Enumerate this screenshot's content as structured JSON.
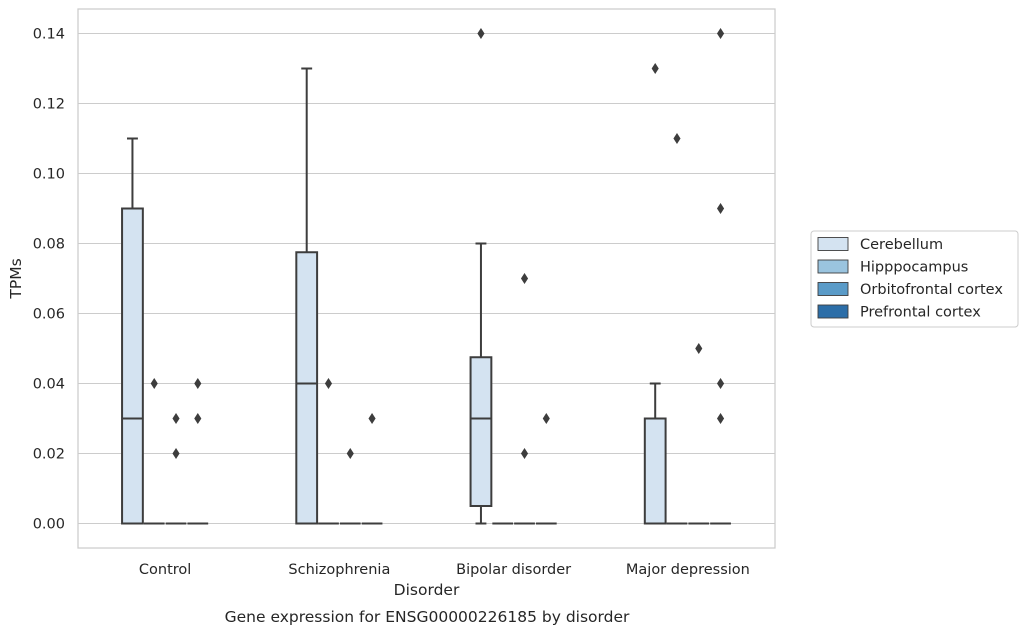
{
  "chart_data": {
    "type": "box",
    "caption": "Gene expression for ENSG00000226185 by disorder",
    "xlabel": "Disorder",
    "ylabel": "TPMs",
    "ylim": [
      -0.007,
      0.147
    ],
    "yticks": [
      0.0,
      0.02,
      0.04,
      0.06,
      0.08,
      0.1,
      0.12,
      0.14
    ],
    "ytick_labels": [
      "0.00",
      "0.02",
      "0.04",
      "0.06",
      "0.08",
      "0.10",
      "0.12",
      "0.14"
    ],
    "grid": "horizontal",
    "legend_position": "right",
    "categories": [
      "Control",
      "Schizophrenia",
      "Bipolar disorder",
      "Major depression"
    ],
    "series": [
      {
        "name": "Cerebellum",
        "color": "#d4e3f1",
        "boxes": [
          {
            "min": 0.0,
            "q1": 0.0,
            "median": 0.03,
            "q3": 0.09,
            "max": 0.11,
            "outliers": []
          },
          {
            "min": 0.0,
            "q1": 0.0,
            "median": 0.04,
            "q3": 0.0775,
            "max": 0.13,
            "outliers": []
          },
          {
            "min": 0.0,
            "q1": 0.005,
            "median": 0.03,
            "q3": 0.0475,
            "max": 0.08,
            "outliers": [
              0.14
            ]
          },
          {
            "min": 0.0,
            "q1": 0.0,
            "median": 0.0,
            "q3": 0.03,
            "max": 0.04,
            "outliers": [
              0.13
            ]
          }
        ]
      },
      {
        "name": "Hipppocampus",
        "color": "#9ac4df",
        "boxes": [
          {
            "min": 0.0,
            "q1": 0.0,
            "median": 0.0,
            "q3": 0.0,
            "max": 0.0,
            "outliers": [
              0.04
            ]
          },
          {
            "min": 0.0,
            "q1": 0.0,
            "median": 0.0,
            "q3": 0.0,
            "max": 0.0,
            "outliers": [
              0.04
            ]
          },
          {
            "min": 0.0,
            "q1": 0.0,
            "median": 0.0,
            "q3": 0.0,
            "max": 0.0,
            "outliers": []
          },
          {
            "min": 0.0,
            "q1": 0.0,
            "median": 0.0,
            "q3": 0.0,
            "max": 0.0,
            "outliers": [
              0.11
            ]
          }
        ]
      },
      {
        "name": "Orbitofrontal cortex",
        "color": "#5a9bc8",
        "boxes": [
          {
            "min": 0.0,
            "q1": 0.0,
            "median": 0.0,
            "q3": 0.0,
            "max": 0.0,
            "outliers": [
              0.03,
              0.02
            ]
          },
          {
            "min": 0.0,
            "q1": 0.0,
            "median": 0.0,
            "q3": 0.0,
            "max": 0.0,
            "outliers": [
              0.02
            ]
          },
          {
            "min": 0.0,
            "q1": 0.0,
            "median": 0.0,
            "q3": 0.0,
            "max": 0.0,
            "outliers": [
              0.07,
              0.02
            ]
          },
          {
            "min": 0.0,
            "q1": 0.0,
            "median": 0.0,
            "q3": 0.0,
            "max": 0.0,
            "outliers": [
              0.05
            ]
          }
        ]
      },
      {
        "name": "Prefrontal cortex",
        "color": "#2c6ea8",
        "boxes": [
          {
            "min": 0.0,
            "q1": 0.0,
            "median": 0.0,
            "q3": 0.0,
            "max": 0.0,
            "outliers": [
              0.04,
              0.03
            ]
          },
          {
            "min": 0.0,
            "q1": 0.0,
            "median": 0.0,
            "q3": 0.0,
            "max": 0.0,
            "outliers": [
              0.03
            ]
          },
          {
            "min": 0.0,
            "q1": 0.0,
            "median": 0.0,
            "q3": 0.0,
            "max": 0.0,
            "outliers": [
              0.03
            ]
          },
          {
            "min": 0.0,
            "q1": 0.0,
            "median": 0.0,
            "q3": 0.0,
            "max": 0.0,
            "outliers": [
              0.14,
              0.09,
              0.04
            ]
          }
        ]
      }
    ],
    "extra_outliers": [
      {
        "category": 3,
        "x_offset": 0.25,
        "value": 0.03
      }
    ]
  }
}
